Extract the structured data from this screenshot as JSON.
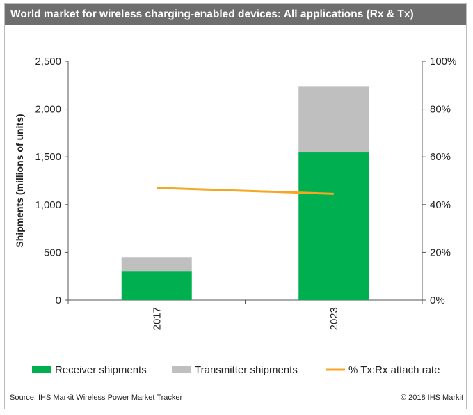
{
  "chart_data": {
    "type": "bar",
    "title": "World market for wireless charging-enabled devices: All applications (Rx & Tx)",
    "categories": [
      "2017",
      "2023"
    ],
    "series": [
      {
        "name": "Receiver shipments",
        "kind": "bar",
        "axis": "left",
        "color": "#00b050",
        "values": [
          305,
          1545
        ]
      },
      {
        "name": "Transmitter shipments",
        "kind": "bar",
        "axis": "left",
        "color": "#bfbfbf",
        "values": [
          145,
          690
        ]
      },
      {
        "name": "% Tx:Rx attach rate",
        "kind": "line",
        "axis": "right",
        "color": "#f5a623",
        "values": [
          47,
          44.5
        ]
      }
    ],
    "ylabel": "Shipments (millions of units)",
    "ylim": [
      0,
      2500
    ],
    "yticks": [
      "0",
      "500",
      "1,000",
      "1,500",
      "2,000",
      "2,500"
    ],
    "ytick_values": [
      0,
      500,
      1000,
      1500,
      2000,
      2500
    ],
    "y2lim": [
      0,
      100
    ],
    "y2ticks": [
      "0%",
      "20%",
      "40%",
      "60%",
      "80%",
      "100%"
    ],
    "y2tick_values": [
      0,
      20,
      40,
      60,
      80,
      100
    ],
    "legend": [
      "Receiver shipments",
      "Transmitter shipments",
      "% Tx:Rx attach rate"
    ],
    "grid": false
  },
  "footer": {
    "source": "Source: IHS Markit Wireless Power Market Tracker",
    "copyright": "© 2018 IHS Markit"
  }
}
